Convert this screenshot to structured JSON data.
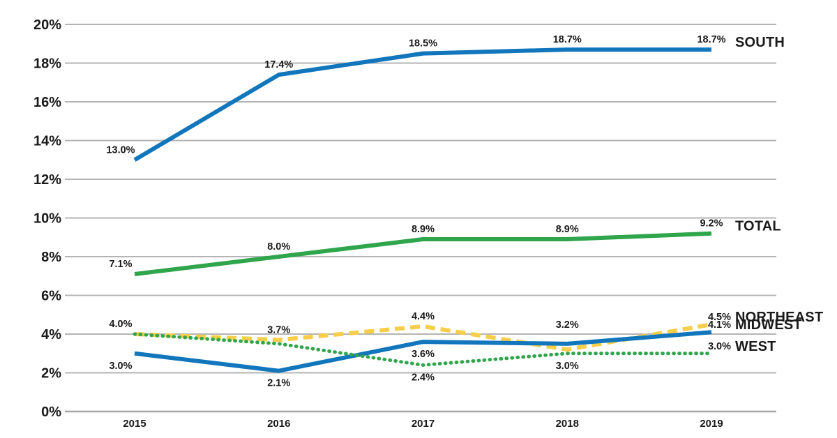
{
  "chart_data": {
    "type": "line",
    "title": "",
    "x_labels": [
      "2015",
      "2016",
      "2017",
      "2018",
      "2019"
    ],
    "y_axis": {
      "min": 0,
      "max": 20,
      "step": 2,
      "unit": "%",
      "tick_labels": [
        "0%",
        "2%",
        "4%",
        "6%",
        "8%",
        "10%",
        "12%",
        "14%",
        "16%",
        "18%",
        "20%"
      ]
    },
    "grid": true,
    "legend_position": "right-end-labels",
    "colors": {
      "blue": "#1276bd",
      "green": "#2fa54c",
      "yellow": "#f6ce49",
      "grid": "#b4b4b4",
      "axis": "#a3a3a3",
      "text": "#1a1a1a"
    },
    "series": [
      {
        "name": "SOUTH",
        "color": "#1276bd",
        "line_style": "solid",
        "values": [
          13.0,
          17.4,
          18.5,
          18.7,
          18.7
        ],
        "point_labels": [
          "13.0%",
          "17.4%",
          "18.5%",
          "18.7%",
          "18.7%"
        ],
        "label_placement": [
          "above",
          "above",
          "above",
          "above",
          "above"
        ],
        "end_label": {
          "value": "",
          "name": "SOUTH"
        }
      },
      {
        "name": "TOTAL",
        "color": "#2fa54c",
        "line_style": "solid",
        "values": [
          7.1,
          8.0,
          8.9,
          8.9,
          9.2
        ],
        "point_labels": [
          "7.1%",
          "8.0%",
          "8.9%",
          "8.9%",
          "9.2%"
        ],
        "label_placement": [
          "above",
          "above",
          "above",
          "above",
          "above"
        ],
        "end_label": {
          "value": "",
          "name": "TOTAL"
        }
      },
      {
        "name": "NORTHEAST",
        "color": "#f6ce49",
        "line_style": "dashed",
        "values": [
          4.0,
          3.7,
          4.4,
          3.2,
          4.5
        ],
        "point_labels": [
          "4.0%",
          "3.7%",
          "4.4%",
          "3.2%",
          ""
        ],
        "label_placement": [
          "above",
          "above",
          "above",
          "above_far",
          "none"
        ],
        "end_label": {
          "value": "4.5%",
          "name": "NORTHEAST"
        }
      },
      {
        "name": "MIDWEST",
        "color": "#1276bd",
        "line_style": "solid",
        "values": [
          3.0,
          2.1,
          3.6,
          3.5,
          4.1
        ],
        "point_labels": [
          "3.0%",
          "2.1%",
          "3.6%",
          "",
          ""
        ],
        "label_placement": [
          "below",
          "below",
          "below",
          "none",
          "none"
        ],
        "end_label": {
          "value": "4.1%",
          "name": "MIDWEST"
        }
      },
      {
        "name": "WEST",
        "color": "#2fa54c",
        "line_style": "dotted",
        "values": [
          4.0,
          3.5,
          2.4,
          3.0,
          3.0
        ],
        "point_labels": [
          "",
          "",
          "2.4%",
          "3.0%",
          ""
        ],
        "label_placement": [
          "none",
          "none",
          "below",
          "below",
          "none"
        ],
        "end_label": {
          "value": "3.0%",
          "name": "WEST"
        }
      }
    ]
  }
}
